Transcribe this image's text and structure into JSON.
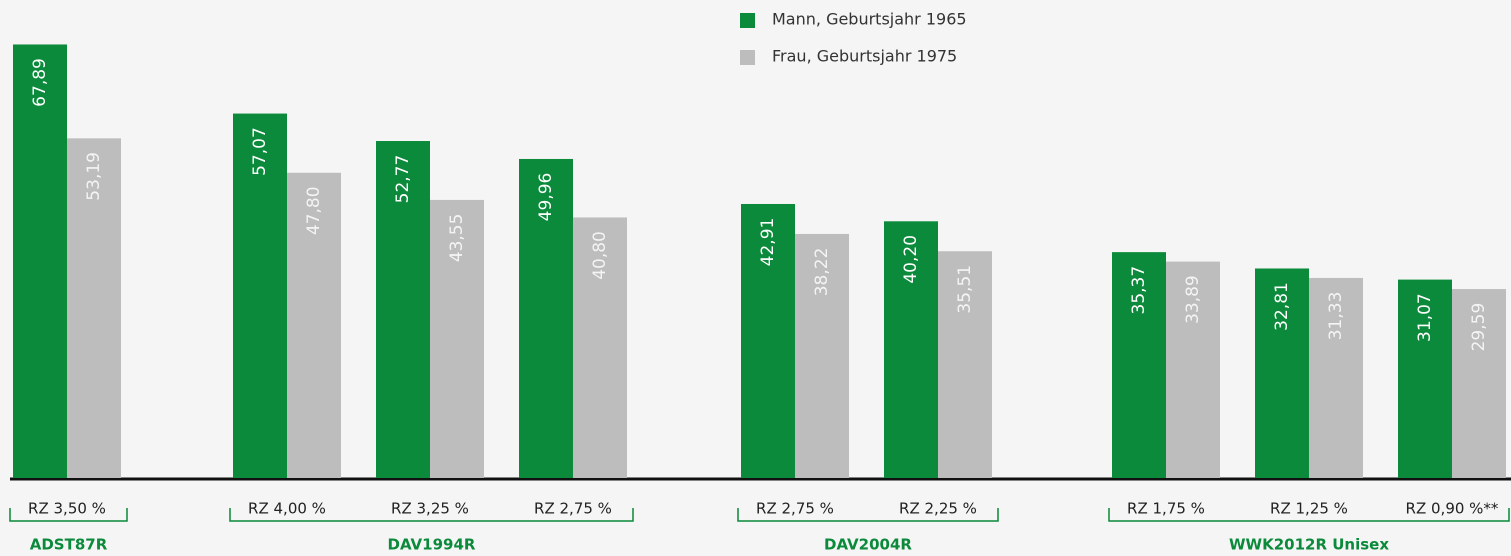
{
  "chart_data": {
    "type": "bar",
    "groups": [
      {
        "name": "ADST87R",
        "categories": [
          "RZ 3,50 %"
        ]
      },
      {
        "name": "DAV1994R",
        "categories": [
          "RZ 4,00 %",
          "RZ 3,25 %",
          "RZ 2,75 %"
        ]
      },
      {
        "name": "DAV2004R",
        "categories": [
          "RZ 2,75 %",
          "RZ 2,25 %"
        ]
      },
      {
        "name": "WWK2012R Unisex",
        "categories": [
          "RZ 1,75 %",
          "RZ 1,25 %",
          "RZ 0,90 %**"
        ]
      }
    ],
    "series": [
      {
        "name": "Mann, Geburtsjahr 1965",
        "color": "#0a8a3a",
        "values": [
          67.89,
          57.07,
          52.77,
          49.96,
          42.91,
          40.2,
          35.37,
          32.81,
          31.07
        ],
        "value_labels": [
          "67,89",
          "57,07",
          "52,77",
          "49,96",
          "42,91",
          "40,20",
          "35,37",
          "32,81",
          "31,07"
        ]
      },
      {
        "name": "Frau, Geburtsjahr 1975",
        "color": "#bdbdbd",
        "values": [
          53.19,
          47.8,
          43.55,
          40.8,
          38.22,
          35.51,
          33.89,
          31.33,
          29.59
        ],
        "value_labels": [
          "53,19",
          "47,80",
          "43,55",
          "40,80",
          "38,22",
          "35,51",
          "33,89",
          "31,33",
          "29,59"
        ]
      }
    ],
    "ylim": [
      0,
      70
    ]
  }
}
